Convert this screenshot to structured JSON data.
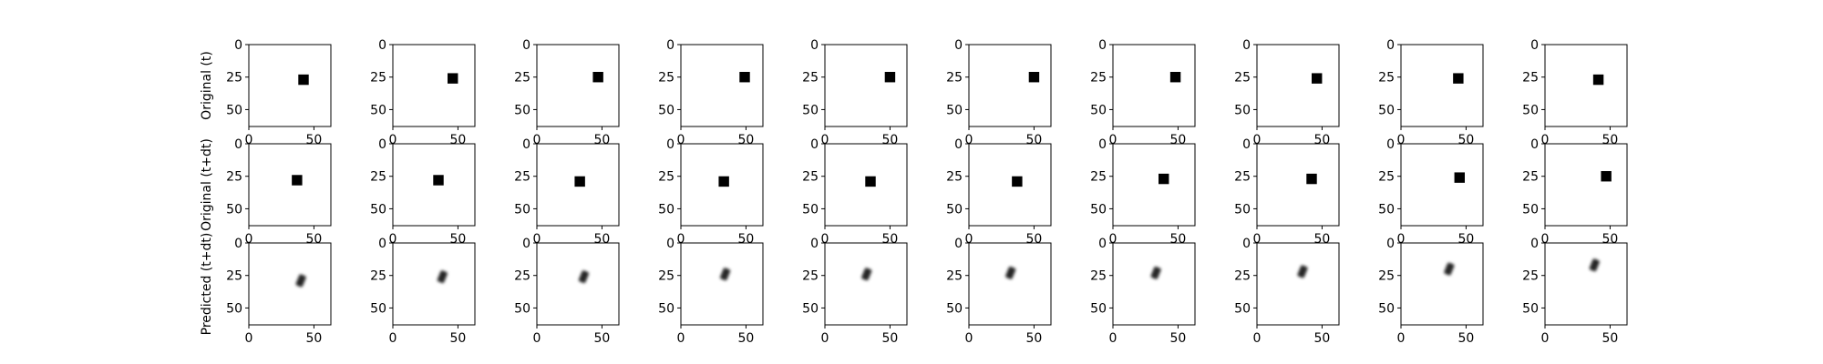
{
  "chart_data": {
    "type": "image-grid",
    "rows": [
      {
        "label": "Original (t)",
        "kind": "square",
        "square_size": 8,
        "centers": [
          [
            42,
            27
          ],
          [
            46,
            26
          ],
          [
            47,
            25
          ],
          [
            49,
            25
          ],
          [
            50,
            25
          ],
          [
            50,
            25
          ],
          [
            48,
            25
          ],
          [
            46,
            26
          ],
          [
            44,
            26
          ],
          [
            41,
            27
          ]
        ]
      },
      {
        "label": "Original (t+dt)",
        "kind": "square",
        "square_size": 8,
        "centers": [
          [
            37,
            28
          ],
          [
            35,
            28
          ],
          [
            33,
            29
          ],
          [
            33,
            29
          ],
          [
            35,
            29
          ],
          [
            37,
            29
          ],
          [
            39,
            27
          ],
          [
            42,
            27
          ],
          [
            45,
            26
          ],
          [
            47,
            25
          ]
        ]
      },
      {
        "label": "Predicted (t+dt)",
        "kind": "blur",
        "centers": [
          [
            40,
            29
          ],
          [
            38,
            26
          ],
          [
            36,
            26
          ],
          [
            34,
            24
          ],
          [
            32,
            24
          ],
          [
            32,
            23
          ],
          [
            33,
            23
          ],
          [
            35,
            22
          ],
          [
            37,
            20
          ],
          [
            38,
            17
          ]
        ]
      }
    ],
    "panel_count": 10,
    "xlim": [
      0,
      63
    ],
    "ylim": [
      63,
      0
    ],
    "xticks": [
      0,
      50
    ],
    "yticks": [
      0,
      25,
      50
    ],
    "xtick_labels": [
      "0",
      "50"
    ],
    "ytick_labels": [
      "0",
      "25",
      "50"
    ],
    "cmap": "gray_r",
    "colors": {
      "background": "#ffffff",
      "mark": "#000000",
      "axis": "#000000"
    }
  }
}
